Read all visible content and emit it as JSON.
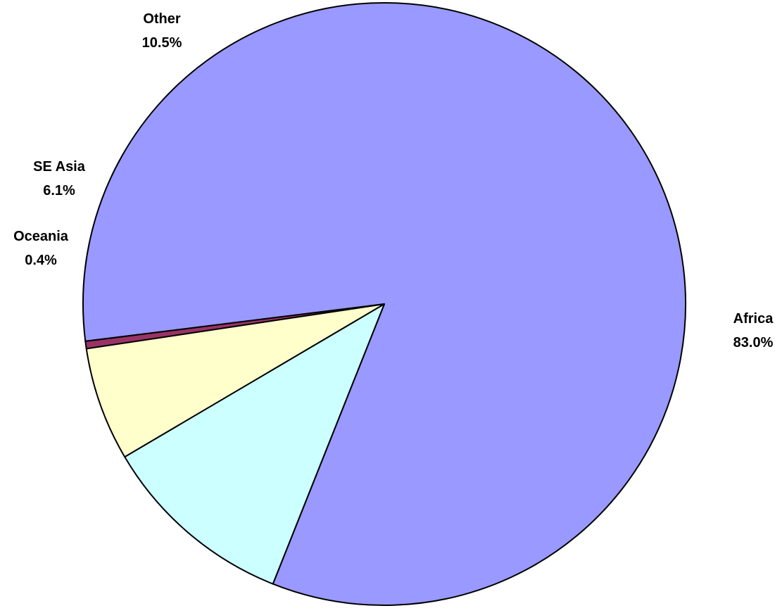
{
  "chart_data": {
    "type": "pie",
    "title": "",
    "start_angle_deg": 248.3,
    "direction": "counterclockwise",
    "slices": [
      {
        "name": "Africa",
        "value": 83.0,
        "label": "83.0%",
        "color": "#9999ff"
      },
      {
        "name": "Oceania",
        "value": 0.4,
        "label": "0.4%",
        "color": "#993366"
      },
      {
        "name": "SE Asia",
        "value": 6.1,
        "label": "6.1%",
        "color": "#ffffcc"
      },
      {
        "name": "Other",
        "value": 10.5,
        "label": "10.5%",
        "color": "#ccffff"
      }
    ],
    "border_color": "#000000",
    "legend": "none"
  }
}
